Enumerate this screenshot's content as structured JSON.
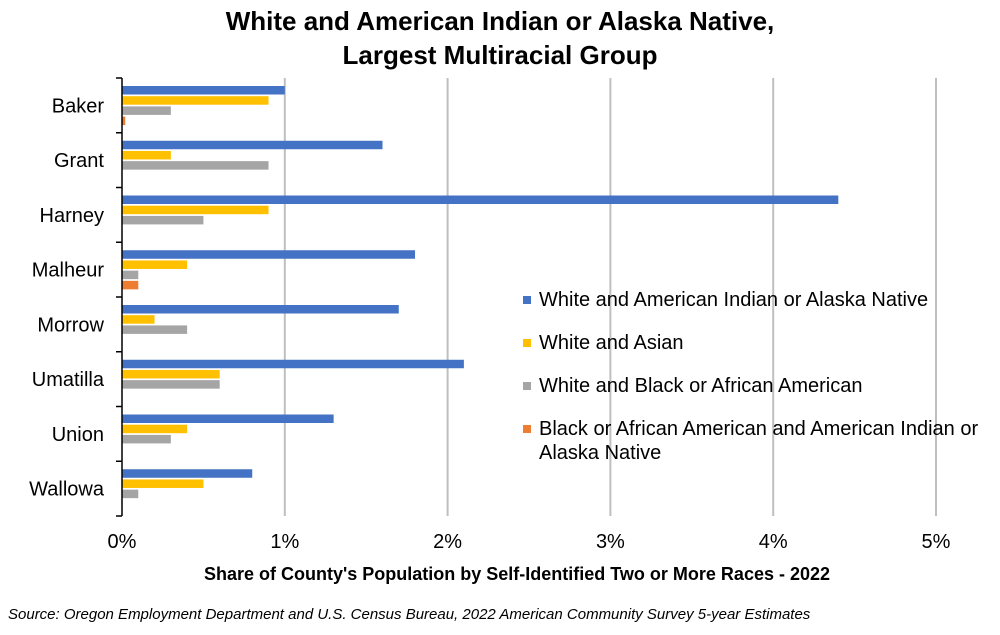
{
  "chart_data": {
    "type": "bar",
    "orientation": "horizontal",
    "title_lines": [
      "White and American Indian or Alaska Native,",
      "Largest Multiracial Group"
    ],
    "xlabel": "Share of County's Population by Self-Identified Two or More Races - 2022",
    "ylabel": "",
    "categories": [
      "Baker",
      "Grant",
      "Harney",
      "Malheur",
      "Morrow",
      "Umatilla",
      "Union",
      "Wallowa"
    ],
    "xlim": [
      0,
      5
    ],
    "x_ticks": [
      "0%",
      "1%",
      "2%",
      "3%",
      "4%",
      "5%"
    ],
    "grid": "vertical",
    "legend_position": "right",
    "series": [
      {
        "name": "White and American Indian or Alaska Native",
        "color": "#4472C4",
        "values": [
          1.0,
          1.6,
          4.4,
          1.8,
          1.7,
          2.1,
          1.3,
          0.8
        ]
      },
      {
        "name": "White and Asian",
        "color": "#FFC000",
        "values": [
          0.9,
          0.3,
          0.9,
          0.4,
          0.2,
          0.6,
          0.4,
          0.5
        ]
      },
      {
        "name": "White and Black or African American",
        "color": "#A5A5A5",
        "values": [
          0.3,
          0.9,
          0.5,
          0.1,
          0.4,
          0.6,
          0.3,
          0.1
        ]
      },
      {
        "name": "Black or African American and American Indian or Alaska Native",
        "color": "#ED7D31",
        "values": [
          0.02,
          0,
          0,
          0.1,
          0,
          0,
          0,
          0
        ]
      }
    ]
  },
  "legend": {
    "items": [
      {
        "label": "White and American Indian or Alaska Native",
        "color": "#4472C4"
      },
      {
        "label": "White and Asian",
        "color": "#FFC000"
      },
      {
        "label": "White and Black or African American",
        "color": "#A5A5A5"
      },
      {
        "label": "Black or African American and American Indian or Alaska Native",
        "color": "#ED7D31"
      }
    ]
  },
  "source": "Source: Oregon Employment Department and U.S. Census Bureau, 2022 American Community Survey 5-year Estimates"
}
